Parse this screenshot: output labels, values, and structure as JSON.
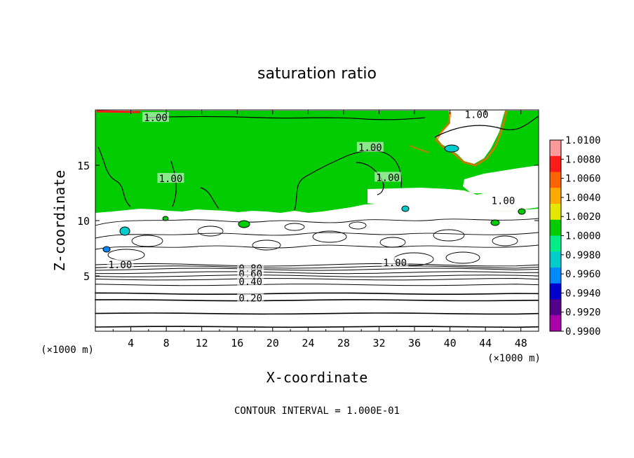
{
  "chart_data": {
    "type": "heatmap",
    "title": "saturation ratio",
    "xlabel": "X-coordinate",
    "ylabel": "Z-coordinate",
    "x_unit": "(×1000 m)",
    "z_unit": "(×1000 m)",
    "xlim": [
      0,
      50
    ],
    "ylim": [
      0,
      20
    ],
    "x_ticks": [
      4,
      8,
      12,
      16,
      20,
      24,
      28,
      32,
      36,
      40,
      44,
      48
    ],
    "y_ticks": [
      5,
      10,
      15
    ],
    "footer": "CONTOUR INTERVAL = 1.000E-01",
    "colorbar": {
      "min": 0.99,
      "max": 1.01,
      "tick_values": [
        1.01,
        1.008,
        1.006,
        1.004,
        1.002,
        1.0,
        0.998,
        0.996,
        0.994,
        0.992,
        0.99
      ],
      "tick_labels": [
        "1.0100",
        "1.0080",
        "1.0060",
        "1.0040",
        "1.0020",
        "1.0000",
        "0.9980",
        "0.9960",
        "0.9940",
        "0.9920",
        "0.9900"
      ],
      "colors": [
        "#ff9a9a",
        "#ff1a1a",
        "#ff6400",
        "#ffaa00",
        "#e6e600",
        "#00cc00",
        "#00ee88",
        "#00cccc",
        "#0088ff",
        "#0000cc",
        "#550088",
        "#aa00aa"
      ]
    },
    "contour_labels": [
      {
        "text": "1.00",
        "x": 6.8,
        "z": 19.3
      },
      {
        "text": "1.00",
        "x": 43.0,
        "z": 19.6
      },
      {
        "text": "1.00",
        "x": 31.0,
        "z": 16.6
      },
      {
        "text": "1.00",
        "x": 8.5,
        "z": 13.8
      },
      {
        "text": "1.00",
        "x": 33.0,
        "z": 13.9
      },
      {
        "text": "1.00",
        "x": 46.0,
        "z": 11.8
      },
      {
        "text": "1.00",
        "x": 2.8,
        "z": 6.0
      },
      {
        "text": "1.00",
        "x": 33.8,
        "z": 6.2
      },
      {
        "text": "0.80",
        "x": 17.5,
        "z": 5.7
      },
      {
        "text": "0.60",
        "x": 17.5,
        "z": 5.2
      },
      {
        "text": "0.40",
        "x": 17.5,
        "z": 4.5
      },
      {
        "text": "0.20",
        "x": 17.5,
        "z": 3.0
      }
    ],
    "contour_levels_z": [
      0.4,
      1.6,
      2.8,
      3.4,
      4.2,
      4.7,
      5.0,
      5.3,
      5.6,
      5.8,
      6.0
    ],
    "regions": {
      "saturated_layer_value": 1.0,
      "saturated_layer_bottom_z": 10.6,
      "saturated_layer_top_z": 19.6,
      "boundary_layer_top_z": 6.3
    }
  }
}
